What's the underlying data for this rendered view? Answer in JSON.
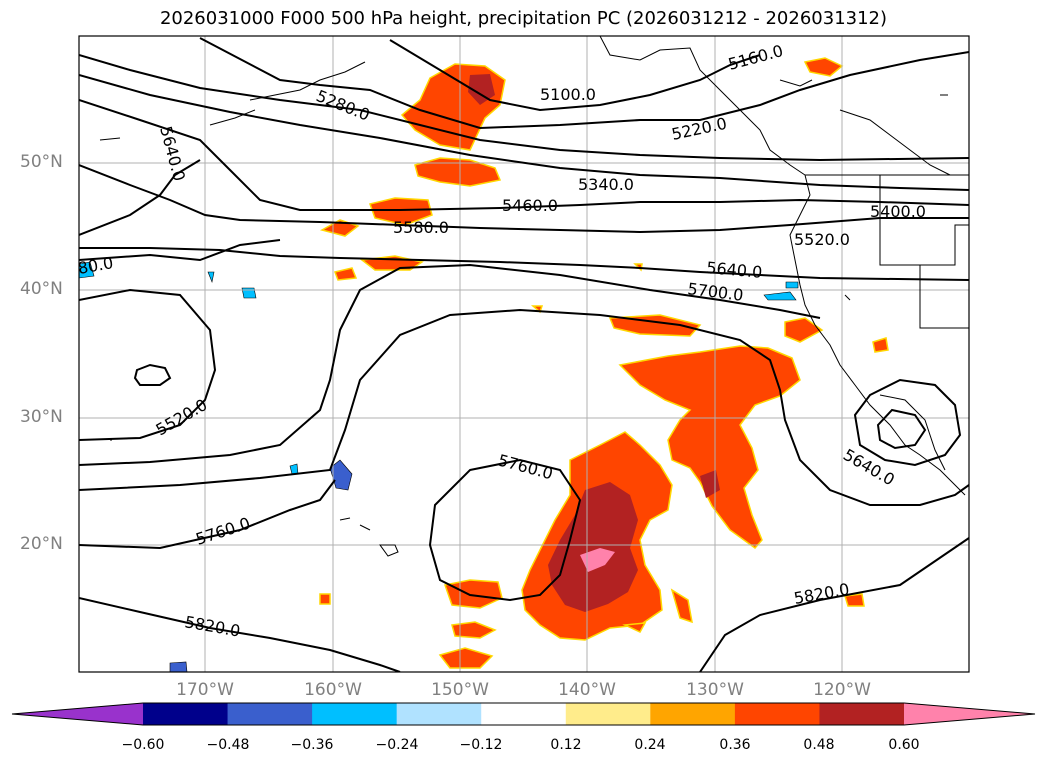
{
  "title": "2026031000 F000 500 hPa height, precipitation PC (2026031212 - 2026031312)",
  "lat_labels": [
    "50°N",
    "40°N",
    "30°N",
    "20°N"
  ],
  "lon_labels": [
    "170°W",
    "160°W",
    "150°W",
    "140°W",
    "130°W",
    "120°W"
  ],
  "contour_labels": [
    "5160.0",
    "5100.0",
    "5220.0",
    "5280.0",
    "5640.0",
    "5340.0",
    "5460.0",
    "5580.0",
    "5400.0",
    "5520.0",
    "80.0",
    "5640.0",
    "5700.0",
    "5520.0",
    "5760.0",
    "5640.0",
    "5760.0",
    "5820.0",
    "5820.0"
  ],
  "colorbar": {
    "ticks": [
      "−0.60",
      "−0.48",
      "−0.36",
      "−0.24",
      "−0.12",
      "0.12",
      "0.24",
      "0.36",
      "0.48",
      "0.60"
    ],
    "colors": [
      "#9932cc",
      "#00008b",
      "#3a5fcd",
      "#00bfff",
      "#b0e2ff",
      "#ffffff",
      "#ffec8b",
      "#ffa500",
      "#ff4500",
      "#b22222",
      "#ff82ab"
    ]
  }
}
